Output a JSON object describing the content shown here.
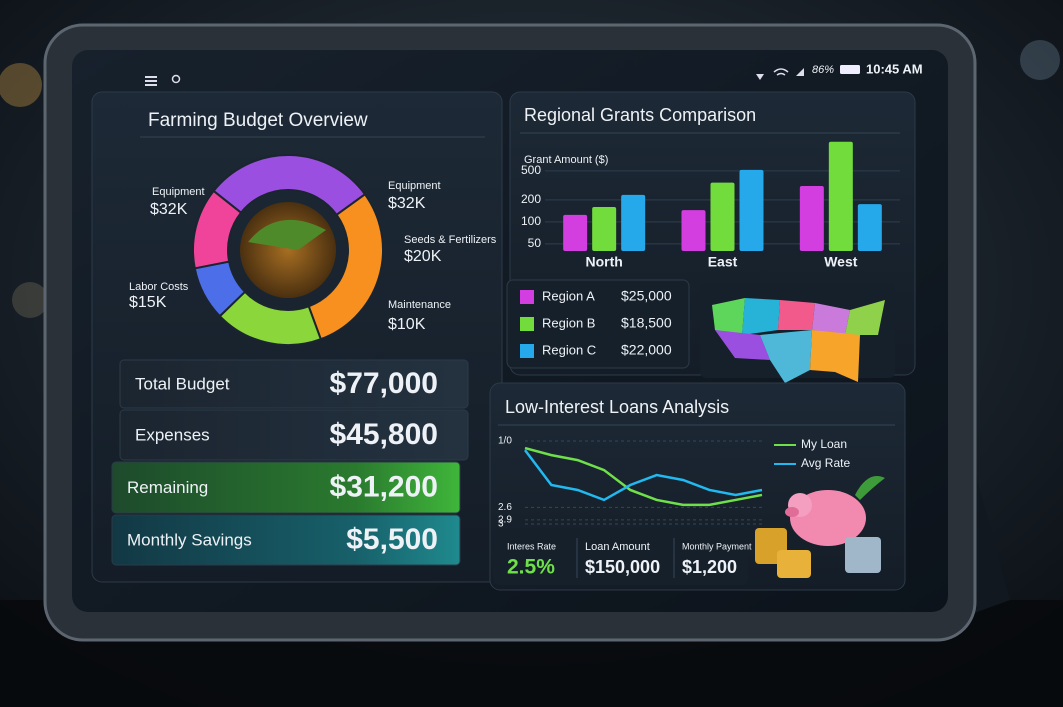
{
  "status_bar": {
    "battery": "86%",
    "time": "10:45 AM"
  },
  "chart_data": [
    {
      "type": "pie",
      "title": "Farming Budget Overview",
      "categories": [
        "Equipment",
        "Equipment",
        "Seeds & Fertilizers",
        "Maintenance",
        "Labor Costs"
      ],
      "values": [
        32000,
        32000,
        20000,
        10000,
        15000
      ],
      "value_labels": [
        "$32K",
        "$32K",
        "$20K",
        "$10K",
        "$15K"
      ],
      "colors": [
        "#9b4fe0",
        "#f7901e",
        "#8bd63a",
        "#4c6ee8",
        "#f0449a"
      ]
    },
    {
      "type": "bar",
      "title": "Regional Grants Comparison",
      "y_label": "Grant Amount ($)",
      "categories": [
        "North",
        "East",
        "West"
      ],
      "series": [
        {
          "name": "Region A",
          "color": "#d23ee0",
          "values": [
            125,
            145,
            310
          ]
        },
        {
          "name": "Region B",
          "color": "#72dc3c",
          "values": [
            160,
            345,
            1250
          ]
        },
        {
          "name": "Region C",
          "color": "#26a9ea",
          "values": [
            235,
            515,
            175
          ]
        }
      ],
      "ylim": [
        40,
        1500
      ],
      "yticks": [
        50,
        100,
        200,
        500
      ],
      "log_scale": true,
      "grid": true
    },
    {
      "type": "line",
      "title": "Low-Interest Loans Analysis",
      "series": [
        {
          "name": "My Loan",
          "color": "#6fe04a",
          "values": [
            1.17,
            1.34,
            1.46,
            1.7,
            2.18,
            2.42,
            2.54,
            2.54,
            2.42,
            2.3
          ]
        },
        {
          "name": "Avg Rate",
          "color": "#22b8f0",
          "values": [
            1.22,
            2.06,
            2.18,
            2.42,
            2.06,
            1.82,
            1.94,
            2.18,
            2.3,
            2.18
          ]
        }
      ],
      "ylim": [
        3.0,
        1.0
      ],
      "yticks": [
        {
          "value": 1.0,
          "label": "1/0"
        },
        2.6,
        2.9,
        3.0
      ],
      "grid": true
    }
  ],
  "budget_summary": [
    {
      "label": "Total Budget",
      "value": "$77,000"
    },
    {
      "label": "Expenses",
      "value": "$45,800"
    },
    {
      "label": "Remaining",
      "value": "$31,200"
    },
    {
      "label": "Monthly Savings",
      "value": "$5,500"
    }
  ],
  "grant_totals": [
    "$25,000",
    "$18,500",
    "$22,000"
  ],
  "loan_stats": [
    {
      "label": "Interes Rate",
      "value": "2.5%"
    },
    {
      "label": "Loan Amount",
      "value": "$150,000"
    },
    {
      "label": "Monthly Payment",
      "value": "$1,200"
    }
  ]
}
